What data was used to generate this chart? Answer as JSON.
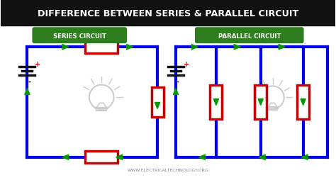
{
  "title": "DIFFERENCE BETWEEN SERIES & PARALLEL CIRCUIT",
  "title_bg": "#111111",
  "title_color": "#ffffff",
  "bg_color": "#ffffff",
  "label_bg": "#2e7d1e",
  "label_color": "#ffffff",
  "circuit_color": "#0000ee",
  "resistor_fill": "#ffffff",
  "resistor_border": "#cc0000",
  "arrow_color": "#009900",
  "battery_color": "#111111",
  "plus_color": "#cc0000",
  "minus_color": "#111111",
  "watermark": "WWW.ELECTRICALTECHNOLOGY.ORG",
  "series_label": "SERIES CIRCUIT",
  "parallel_label": "PARALLEL CIRCUIT"
}
